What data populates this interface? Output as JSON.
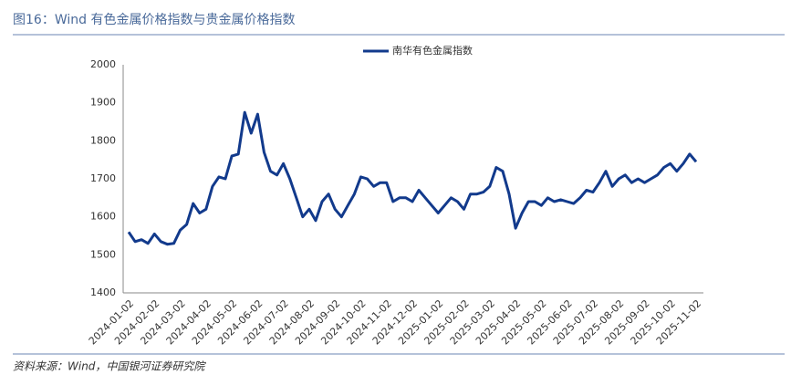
{
  "chart_data": {
    "type": "line",
    "title": "图16：Wind 有色金属价格指数与贵金属价格指数",
    "source": "资料来源：Wind，中国银河证券研究院",
    "categories": [
      "2024-01-02",
      null,
      null,
      null,
      "2024-02-02",
      null,
      null,
      null,
      "2024-03-02",
      null,
      null,
      null,
      "2024-04-02",
      null,
      null,
      null,
      "2024-05-02",
      null,
      null,
      null,
      "2024-06-02",
      null,
      null,
      null,
      "2024-07-02",
      null,
      null,
      null,
      "2024-08-02",
      null,
      null,
      null,
      "2024-09-02",
      null,
      null,
      null,
      "2024-10-02",
      null,
      null,
      null,
      "2024-11-02",
      null,
      null,
      null,
      "2024-12-02",
      null,
      null,
      null,
      "2025-01-02",
      null,
      null,
      null,
      "2025-02-02",
      null,
      null,
      null,
      "2025-03-02",
      null,
      null,
      null,
      "2025-04-02",
      null,
      null,
      null,
      "2025-05-02",
      null,
      null,
      null,
      "2025-06-02",
      null,
      null,
      null,
      "2025-07-02",
      null,
      null,
      null,
      "2025-08-02",
      null,
      null,
      null,
      "2025-09-02",
      null,
      null,
      null,
      "2025-10-02",
      null,
      null,
      null,
      "2025-11-02"
    ],
    "series": [
      {
        "name": "南华有色金属指数",
        "color": "#123a8c",
        "values": [
          1560,
          1535,
          1540,
          1530,
          1555,
          1535,
          1528,
          1530,
          1565,
          1580,
          1635,
          1610,
          1620,
          1680,
          1705,
          1700,
          1760,
          1765,
          1875,
          1820,
          1870,
          1770,
          1720,
          1710,
          1740,
          1700,
          1650,
          1600,
          1620,
          1590,
          1640,
          1660,
          1620,
          1600,
          1630,
          1660,
          1705,
          1700,
          1680,
          1690,
          1690,
          1640,
          1650,
          1650,
          1640,
          1670,
          1650,
          1630,
          1610,
          1630,
          1650,
          1640,
          1620,
          1660,
          1660,
          1665,
          1680,
          1730,
          1720,
          1660,
          1570,
          1610,
          1640,
          1640,
          1630,
          1650,
          1640,
          1645,
          1640,
          1635,
          1650,
          1670,
          1665,
          1690,
          1720,
          1680,
          1700,
          1710,
          1690,
          1700,
          1690,
          1700,
          1710,
          1730,
          1740,
          1720,
          1740,
          1765,
          1745
        ]
      }
    ],
    "ylim": [
      1400,
      2000
    ],
    "yticks": [
      1400,
      1500,
      1600,
      1700,
      1800,
      1900,
      2000
    ],
    "legend": "top"
  }
}
